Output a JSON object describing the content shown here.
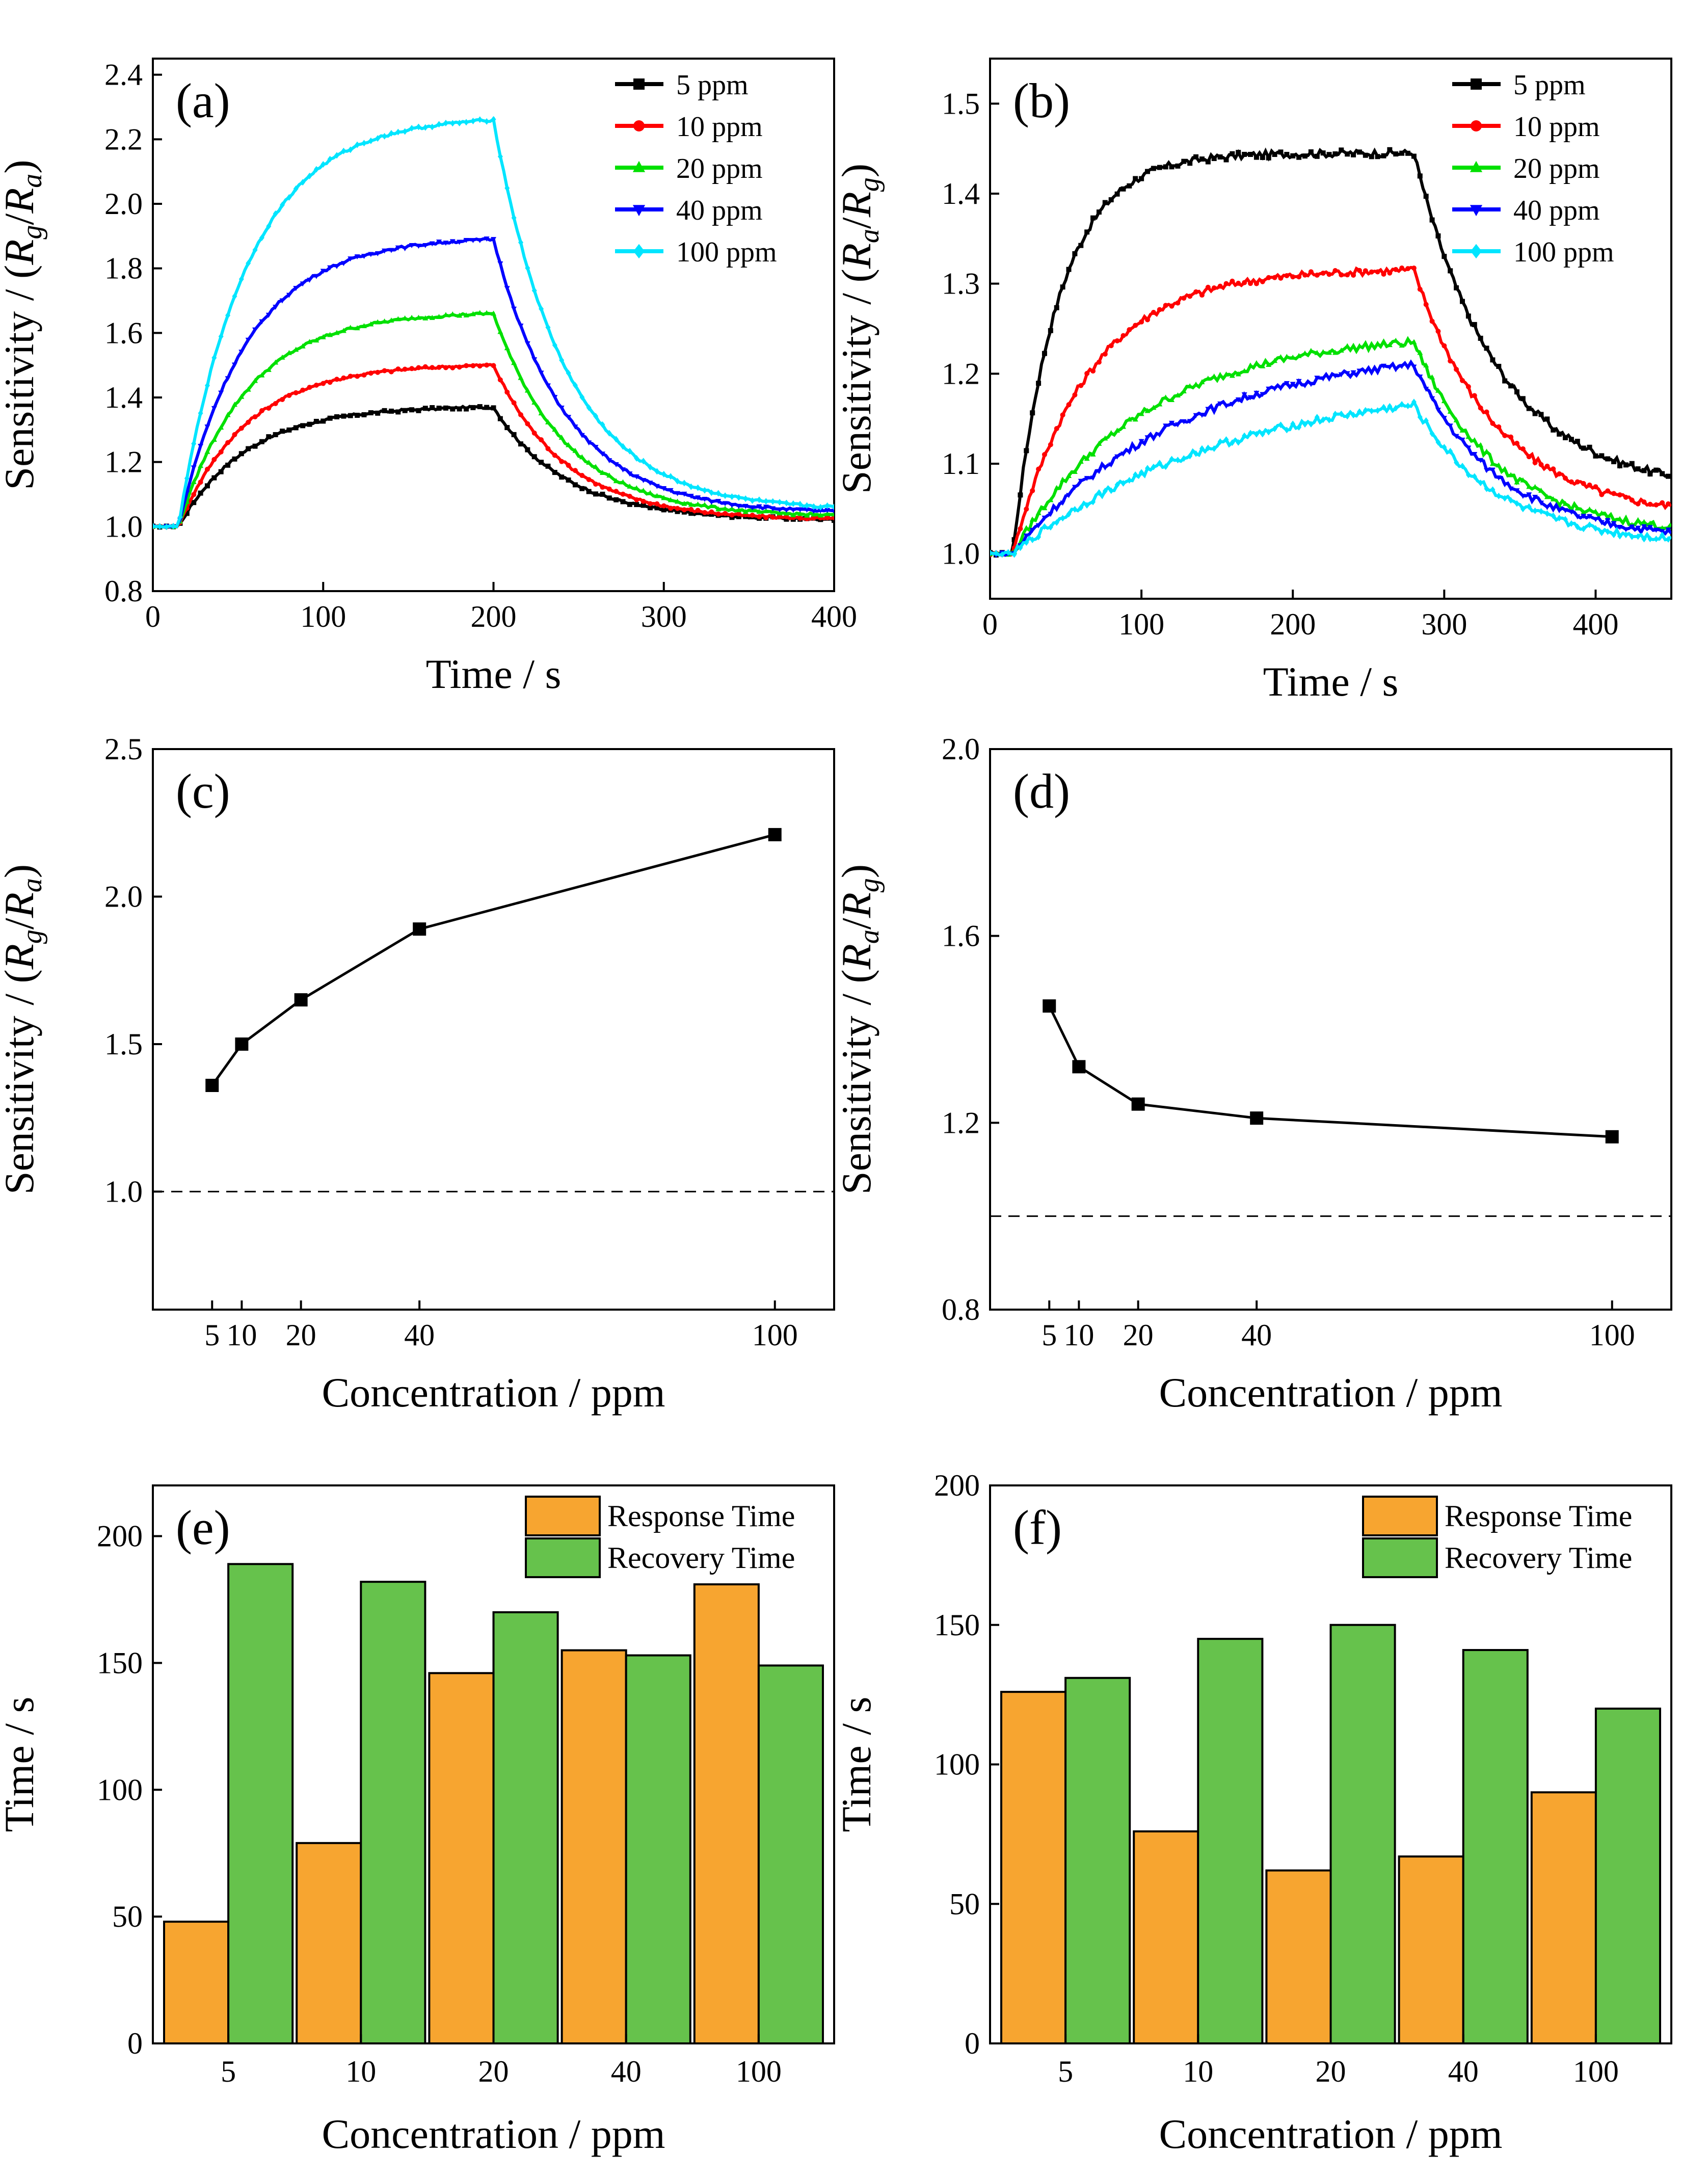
{
  "chart_data": [
    {
      "id": "a",
      "type": "line",
      "panel_label": "(a)",
      "xlabel": "Time / s",
      "ylabel_prefix": "Sensitivity /  ",
      "ylabel_math": "(Rg/Ra)",
      "ylabel_sym1": "R",
      "ylabel_sub1": "g",
      "ylabel_sym2": "R",
      "ylabel_sub2": "a",
      "xlim": [
        0,
        400
      ],
      "ylim": [
        0.8,
        2.45
      ],
      "xticks": [
        0,
        100,
        200,
        300,
        400
      ],
      "yticks": [
        0.8,
        1.0,
        1.2,
        1.4,
        1.6,
        1.8,
        2.0,
        2.2,
        2.4
      ],
      "ytick_labels": [
        "0.8",
        "1.0",
        "1.2",
        "1.4",
        "1.6",
        "1.8",
        "2.0",
        "2.2",
        "2.4"
      ],
      "legend_position": "top-right",
      "exposure": {
        "t_on": 15,
        "t_off": 200,
        "t_end": 400,
        "tau_rise": 40,
        "tau_decay": 42,
        "baseline": 1.0
      },
      "series": [
        {
          "name": "5 ppm",
          "color": "#000000",
          "marker": "square",
          "peak": 1.37,
          "final": 1.02
        },
        {
          "name": "10 ppm",
          "color": "#ff0000",
          "marker": "circle",
          "peak": 1.5,
          "final": 1.02
        },
        {
          "name": "20 ppm",
          "color": "#00e000",
          "marker": "triangle-up",
          "peak": 1.66,
          "final": 1.03
        },
        {
          "name": "40 ppm",
          "color": "#0000ff",
          "marker": "triangle-down",
          "peak": 1.89,
          "final": 1.04
        },
        {
          "name": "100 ppm",
          "color": "#00e5ff",
          "marker": "diamond",
          "peak": 2.26,
          "final": 1.05
        }
      ]
    },
    {
      "id": "b",
      "type": "line",
      "panel_label": "(b)",
      "xlabel": "Time / s",
      "ylabel_prefix": "Sensitivity /  ",
      "ylabel_math": "(Ra/Rg)",
      "ylabel_sym1": "R",
      "ylabel_sub1": "a",
      "ylabel_sym2": "R",
      "ylabel_sub2": "g",
      "xlim": [
        0,
        450
      ],
      "ylim": [
        0.95,
        1.55
      ],
      "xticks": [
        0,
        100,
        200,
        300,
        400
      ],
      "yticks": [
        1.0,
        1.1,
        1.2,
        1.3,
        1.4,
        1.5
      ],
      "ytick_labels": [
        "1.0",
        "1.1",
        "1.2",
        "1.3",
        "1.4",
        "1.5"
      ],
      "legend_position": "top-right",
      "exposure": {
        "t_on": 15,
        "t_off": 280,
        "t_end": 450,
        "tau_rise": 38,
        "tau_decay": 55,
        "baseline": 1.0
      },
      "series": [
        {
          "name": "5 ppm",
          "color": "#000000",
          "marker": "square",
          "peak": 1.445,
          "final": 1.07,
          "tau_rise": 30
        },
        {
          "name": "10 ppm",
          "color": "#ff0000",
          "marker": "circle",
          "peak": 1.315,
          "final": 1.04,
          "tau_rise": 50
        },
        {
          "name": "20 ppm",
          "color": "#00e000",
          "marker": "triangle-up",
          "peak": 1.235,
          "final": 1.02,
          "tau_rise": 85
        },
        {
          "name": "40 ppm",
          "color": "#0000ff",
          "marker": "triangle-down",
          "peak": 1.21,
          "final": 1.015,
          "tau_rise": 110
        },
        {
          "name": "100 ppm",
          "color": "#00e5ff",
          "marker": "diamond",
          "peak": 1.165,
          "final": 1.01,
          "tau_rise": 140
        }
      ]
    },
    {
      "id": "c",
      "type": "line",
      "panel_label": "(c)",
      "xlabel": "Concentration / ppm",
      "ylabel_prefix": "Sensitivity /  ",
      "ylabel_math": "(Rg/Ra)",
      "ylabel_sym1": "R",
      "ylabel_sub1": "g",
      "ylabel_sym2": "R",
      "ylabel_sub2": "a",
      "xlim": [
        -5,
        110
      ],
      "ylim": [
        0.6,
        2.5
      ],
      "xticks": [
        5,
        10,
        20,
        40,
        100
      ],
      "xtick_labels": [
        "5",
        "10",
        "20",
        "40",
        "100"
      ],
      "yticks": [
        1.0,
        1.5,
        2.0,
        2.5
      ],
      "ytick_labels": [
        "1.0",
        "1.5",
        "2.0",
        "2.5"
      ],
      "x": [
        5,
        10,
        20,
        40,
        100
      ],
      "values": [
        1.36,
        1.5,
        1.65,
        1.89,
        2.21
      ],
      "reference_line": 1.0
    },
    {
      "id": "d",
      "type": "line",
      "panel_label": "(d)",
      "xlabel": "Concentration / ppm",
      "ylabel_prefix": "Sensitivity /  ",
      "ylabel_math": "(Ra/Rg)",
      "ylabel_sym1": "R",
      "ylabel_sub1": "a",
      "ylabel_sym2": "R",
      "ylabel_sub2": "g",
      "xlim": [
        -5,
        110
      ],
      "ylim": [
        0.8,
        2.0
      ],
      "xticks": [
        5,
        10,
        20,
        40,
        100
      ],
      "xtick_labels": [
        "5",
        "10",
        "20",
        "40",
        "100"
      ],
      "yticks": [
        0.8,
        1.2,
        1.6,
        2.0
      ],
      "ytick_labels": [
        "0.8",
        "1.2",
        "1.6",
        "2.0"
      ],
      "x": [
        5,
        10,
        20,
        40,
        100
      ],
      "values": [
        1.45,
        1.32,
        1.24,
        1.21,
        1.17
      ],
      "reference_line": 1.0
    },
    {
      "id": "e",
      "type": "bar",
      "panel_label": "(e)",
      "xlabel": "Concentration / ppm",
      "ylabel": "Time / s",
      "categories": [
        "5",
        "10",
        "20",
        "40",
        "100"
      ],
      "ylim": [
        0,
        220
      ],
      "yticks": [
        0,
        50,
        100,
        150,
        200
      ],
      "ytick_labels": [
        "0",
        "50",
        "100",
        "150",
        "200"
      ],
      "legend_position": "top-right",
      "series": [
        {
          "name": "Response Time",
          "color": "#f7a530",
          "values": [
            48,
            79,
            146,
            155,
            181
          ]
        },
        {
          "name": "Recovery Time",
          "color": "#66c24c",
          "values": [
            189,
            182,
            170,
            153,
            149
          ]
        }
      ]
    },
    {
      "id": "f",
      "type": "bar",
      "panel_label": "(f)",
      "xlabel": "Concentration / ppm",
      "ylabel": "Time / s",
      "categories": [
        "5",
        "10",
        "20",
        "40",
        "100"
      ],
      "ylim": [
        0,
        200
      ],
      "yticks": [
        0,
        50,
        100,
        150,
        200
      ],
      "ytick_labels": [
        "0",
        "50",
        "100",
        "150",
        "200"
      ],
      "legend_position": "top-right",
      "series": [
        {
          "name": "Response Time",
          "color": "#f7a530",
          "values": [
            126,
            76,
            62,
            67,
            90
          ]
        },
        {
          "name": "Recovery Time",
          "color": "#66c24c",
          "values": [
            131,
            145,
            150,
            141,
            120
          ]
        }
      ]
    }
  ]
}
